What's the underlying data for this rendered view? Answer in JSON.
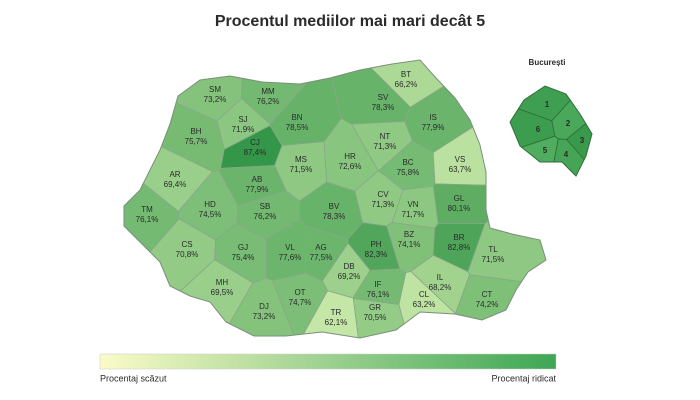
{
  "title": "Procentul mediilor mai mari decât 5",
  "inset": {
    "title": "București",
    "sectors": [
      "1",
      "2",
      "3",
      "4",
      "5",
      "6"
    ]
  },
  "counties": [
    {
      "code": "SM",
      "percent": {
        "value": 73.2,
        "label": "73,2%"
      }
    },
    {
      "code": "MM",
      "percent": {
        "value": 76.2,
        "label": "76,2%"
      }
    },
    {
      "code": "BT",
      "percent": {
        "value": 66.2,
        "label": "66,2%"
      }
    },
    {
      "code": "SV",
      "percent": {
        "value": 78.3,
        "label": "78,3%"
      }
    },
    {
      "code": "SJ",
      "percent": {
        "value": 71.9,
        "label": "71,9%"
      }
    },
    {
      "code": "BN",
      "percent": {
        "value": 78.5,
        "label": "78,5%"
      }
    },
    {
      "code": "IS",
      "percent": {
        "value": 77.9,
        "label": "77,9%"
      }
    },
    {
      "code": "BH",
      "percent": {
        "value": 75.7,
        "label": "75,7%"
      }
    },
    {
      "code": "CJ",
      "percent": {
        "value": 87.4,
        "label": "87,4%"
      }
    },
    {
      "code": "NT",
      "percent": {
        "value": 71.3,
        "label": "71,3%"
      }
    },
    {
      "code": "MS",
      "percent": {
        "value": 71.5,
        "label": "71,5%"
      }
    },
    {
      "code": "HR",
      "percent": {
        "value": 72.6,
        "label": "72,6%"
      }
    },
    {
      "code": "BC",
      "percent": {
        "value": 75.8,
        "label": "75,8%"
      }
    },
    {
      "code": "VS",
      "percent": {
        "value": 63.7,
        "label": "63,7%"
      }
    },
    {
      "code": "AR",
      "percent": {
        "value": 69.4,
        "label": "69,4%"
      }
    },
    {
      "code": "AB",
      "percent": {
        "value": 77.9,
        "label": "77,9%"
      }
    },
    {
      "code": "CV",
      "percent": {
        "value": 71.3,
        "label": "71,3%"
      }
    },
    {
      "code": "VN",
      "percent": {
        "value": 71.7,
        "label": "71,7%"
      }
    },
    {
      "code": "GL",
      "percent": {
        "value": 80.1,
        "label": "80,1%"
      }
    },
    {
      "code": "TM",
      "percent": {
        "value": 76.1,
        "label": "76,1%"
      }
    },
    {
      "code": "HD",
      "percent": {
        "value": 74.5,
        "label": "74,5%"
      }
    },
    {
      "code": "SB",
      "percent": {
        "value": 76.2,
        "label": "76,2%"
      }
    },
    {
      "code": "BV",
      "percent": {
        "value": 78.3,
        "label": "78,3%"
      }
    },
    {
      "code": "BZ",
      "percent": {
        "value": 74.1,
        "label": "74,1%"
      }
    },
    {
      "code": "BR",
      "percent": {
        "value": 82.8,
        "label": "82,8%"
      }
    },
    {
      "code": "TL",
      "percent": {
        "value": 71.5,
        "label": "71,5%"
      }
    },
    {
      "code": "CS",
      "percent": {
        "value": 70.8,
        "label": "70,8%"
      }
    },
    {
      "code": "GJ",
      "percent": {
        "value": 75.4,
        "label": "75,4%"
      }
    },
    {
      "code": "VL",
      "percent": {
        "value": 77.6,
        "label": "77,6%"
      }
    },
    {
      "code": "AG",
      "percent": {
        "value": 77.5,
        "label": "77,5%"
      }
    },
    {
      "code": "PH",
      "percent": {
        "value": 82.3,
        "label": "82,3%"
      }
    },
    {
      "code": "DB",
      "percent": {
        "value": 69.2,
        "label": "69,2%"
      }
    },
    {
      "code": "MH",
      "percent": {
        "value": 69.5,
        "label": "69,5%"
      }
    },
    {
      "code": "IL",
      "percent": {
        "value": 68.2,
        "label": "68,2%"
      }
    },
    {
      "code": "IF",
      "percent": {
        "value": 76.1,
        "label": "76,1%"
      }
    },
    {
      "code": "OT",
      "percent": {
        "value": 74.7,
        "label": "74,7%"
      }
    },
    {
      "code": "DJ",
      "percent": {
        "value": 73.2,
        "label": "73,2%"
      }
    },
    {
      "code": "TR",
      "percent": {
        "value": 62.1,
        "label": "62,1%"
      }
    },
    {
      "code": "GR",
      "percent": {
        "value": 70.5,
        "label": "70,5%"
      }
    },
    {
      "code": "CL",
      "percent": {
        "value": 63.2,
        "label": "63,2%"
      }
    },
    {
      "code": "CT",
      "percent": {
        "value": 74.2,
        "label": "74,2%"
      }
    }
  ],
  "legend": {
    "low": "Procentaj scăzut",
    "high": "Procentaj ridicat"
  }
}
